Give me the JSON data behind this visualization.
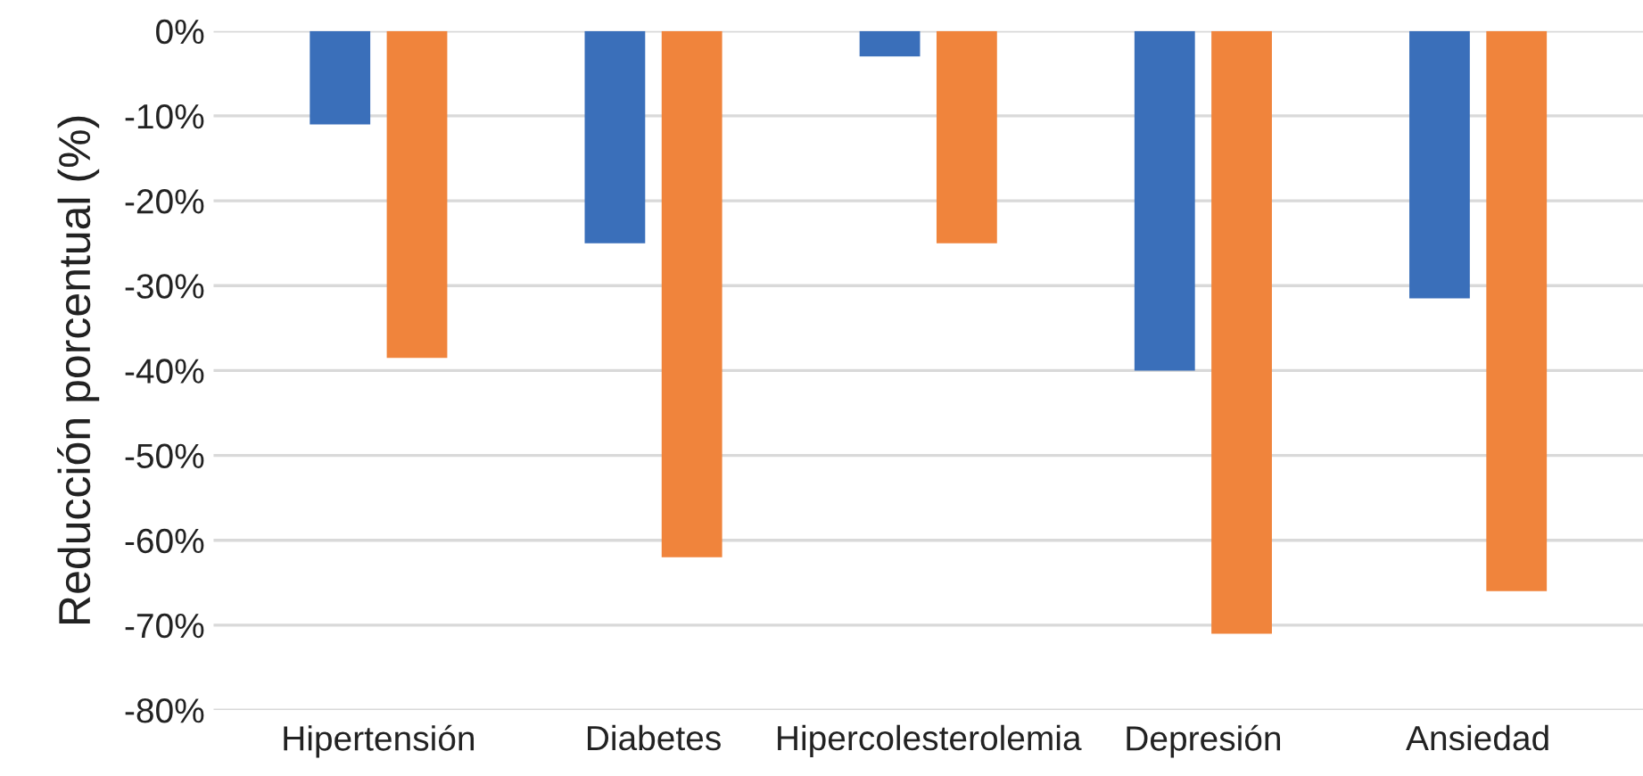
{
  "chart_data": {
    "type": "bar",
    "ylabel": "Reducción porcentual (%)",
    "categories": [
      "Hipertensión",
      "Diabetes",
      "Hipercolesterolemia",
      "Depresión",
      "Ansiedad"
    ],
    "series": [
      {
        "color": "#3a6fba",
        "values": [
          -11,
          -25,
          -3,
          -40,
          -31.5
        ]
      },
      {
        "color": "#f0843c",
        "values": [
          -38.5,
          -62,
          -25,
          -71,
          -66
        ]
      }
    ],
    "ylim": [
      -80,
      0
    ],
    "yticks": [
      {
        "value": 0,
        "label": "0%"
      },
      {
        "value": -10,
        "label": "-10%"
      },
      {
        "value": -20,
        "label": "-20%"
      },
      {
        "value": -30,
        "label": "-30%"
      },
      {
        "value": -40,
        "label": "-40%"
      },
      {
        "value": -50,
        "label": "-50%"
      },
      {
        "value": -60,
        "label": "-60%"
      },
      {
        "value": -70,
        "label": "-70%"
      },
      {
        "value": -80,
        "label": "-80%"
      }
    ],
    "grid": "y"
  }
}
